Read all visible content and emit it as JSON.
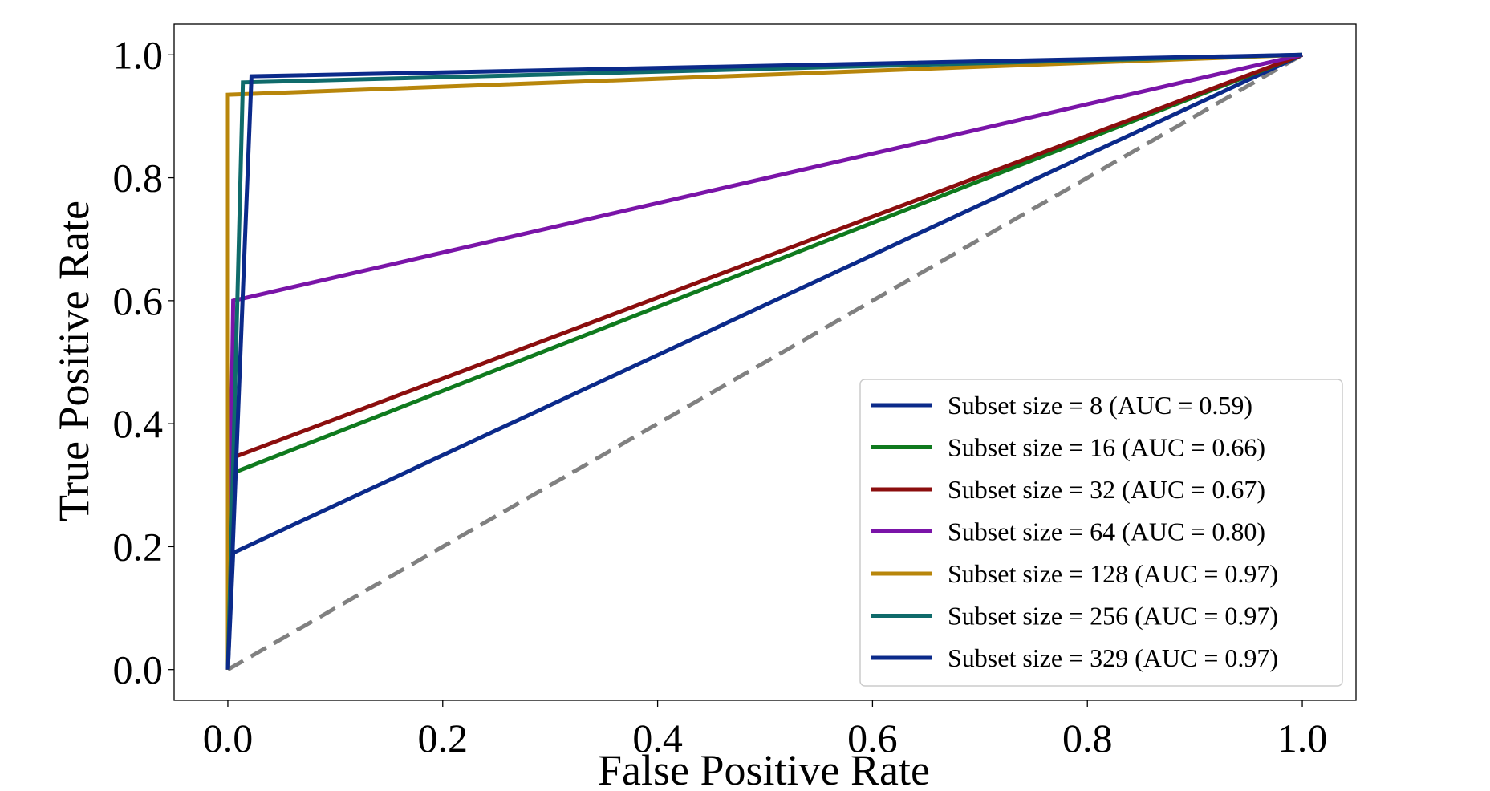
{
  "chart_data": {
    "type": "line",
    "xlabel": "False Positive Rate",
    "ylabel": "True Positive Rate",
    "xlim": [
      -0.05,
      1.05
    ],
    "ylim": [
      -0.05,
      1.05
    ],
    "xticks": [
      "0.0",
      "0.2",
      "0.4",
      "0.6",
      "0.8",
      "1.0"
    ],
    "yticks": [
      "0.0",
      "0.2",
      "0.4",
      "0.6",
      "0.8",
      "1.0"
    ],
    "grid": false,
    "legend_position": "lower-right",
    "series": [
      {
        "name": "Subset size = 8 (AUC = 0.59)",
        "color": "#0b2a8a",
        "x": [
          0,
          0.005,
          1
        ],
        "y": [
          0,
          0.19,
          1
        ]
      },
      {
        "name": "Subset size = 16 (AUC = 0.66)",
        "color": "#0f7a1e",
        "x": [
          0,
          0.005,
          1
        ],
        "y": [
          0,
          0.32,
          1
        ]
      },
      {
        "name": "Subset size = 32 (AUC = 0.67)",
        "color": "#8b0e0e",
        "x": [
          0,
          0.005,
          1
        ],
        "y": [
          0,
          0.345,
          1
        ]
      },
      {
        "name": "Subset size = 64 (AUC = 0.80)",
        "color": "#7a14a8",
        "x": [
          0,
          0.005,
          1
        ],
        "y": [
          0,
          0.6,
          1
        ]
      },
      {
        "name": "Subset size = 128 (AUC = 0.97)",
        "color": "#b8860b",
        "x": [
          0,
          0.0,
          1
        ],
        "y": [
          0,
          0.935,
          1
        ]
      },
      {
        "name": "Subset size = 256 (AUC = 0.97)",
        "color": "#0f6b6b",
        "x": [
          0,
          0.014,
          1
        ],
        "y": [
          0,
          0.955,
          1
        ]
      },
      {
        "name": "Subset size = 329 (AUC = 0.97)",
        "color": "#0b2a8a",
        "x": [
          0,
          0.022,
          1
        ],
        "y": [
          0,
          0.965,
          1
        ]
      }
    ],
    "reference_line": {
      "x": [
        0,
        1
      ],
      "y": [
        0,
        1
      ],
      "color": "#808080",
      "style": "dashed"
    }
  }
}
